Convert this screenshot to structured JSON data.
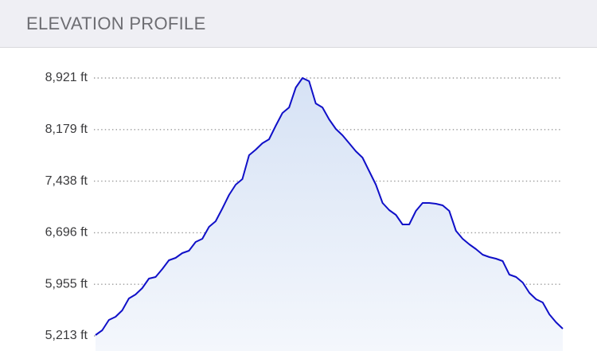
{
  "header": {
    "title": "ELEVATION PROFILE"
  },
  "chart_data": {
    "type": "area",
    "values": [
      5224,
      5293,
      5442,
      5488,
      5579,
      5751,
      5808,
      5900,
      6037,
      6060,
      6174,
      6300,
      6335,
      6403,
      6438,
      6563,
      6609,
      6781,
      6861,
      7044,
      7239,
      7387,
      7467,
      7811,
      7891,
      7983,
      8040,
      8234,
      8418,
      8498,
      8784,
      8921,
      8875,
      8555,
      8498,
      8326,
      8189,
      8097,
      7983,
      7868,
      7777,
      7582,
      7387,
      7124,
      7021,
      6952,
      6815,
      6815,
      7010,
      7124,
      7124,
      7113,
      7090,
      7010,
      6724,
      6609,
      6529,
      6460,
      6380,
      6346,
      6323,
      6289,
      6094,
      6060,
      5980,
      5831,
      5739,
      5694,
      5522,
      5408,
      5316
    ],
    "color": "#1010c8",
    "ylim": [
      5213,
      8921
    ],
    "yticks": [
      {
        "value": 5213,
        "label": "5,213 ft"
      },
      {
        "value": 5955,
        "label": "5,955 ft"
      },
      {
        "value": 6696,
        "label": "6,696 ft"
      },
      {
        "value": 7438,
        "label": "7,438 ft"
      },
      {
        "value": 8179,
        "label": "8,179 ft"
      },
      {
        "value": 8921,
        "label": "8,921 ft"
      }
    ],
    "grid": true
  }
}
